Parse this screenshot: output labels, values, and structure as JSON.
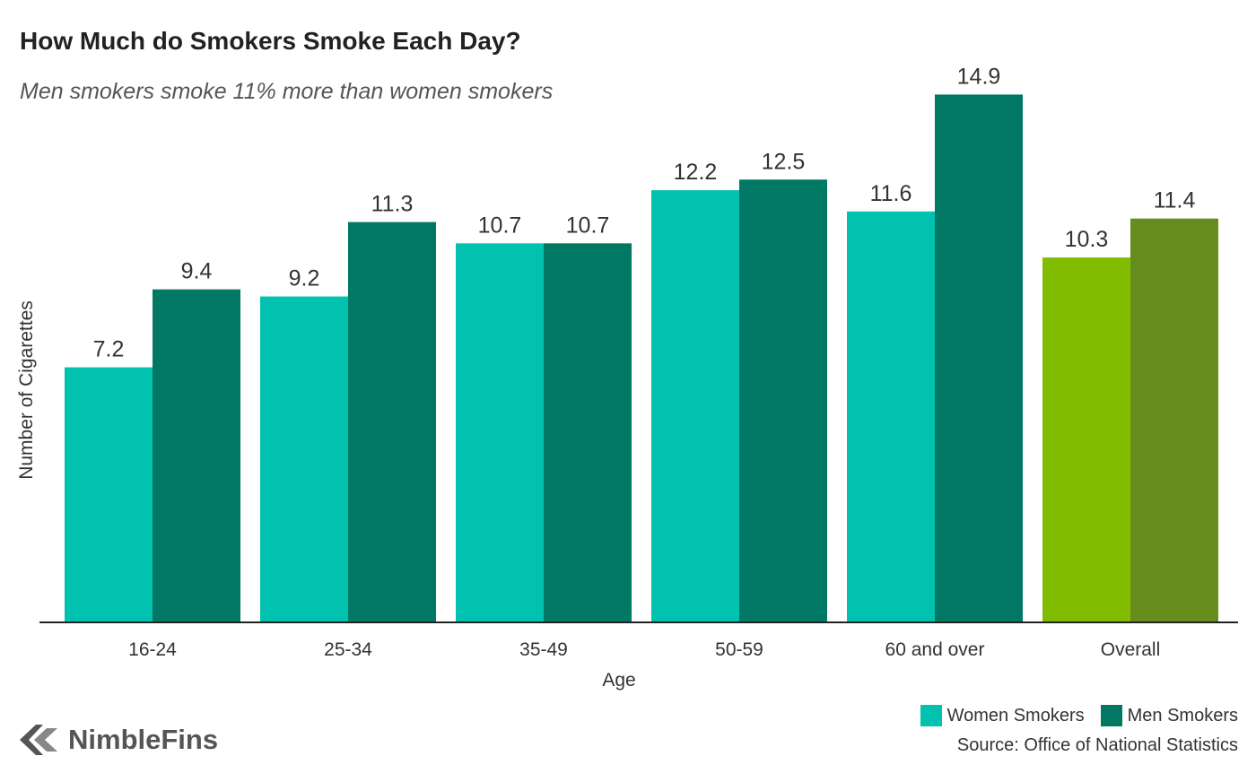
{
  "header": {
    "title": "How Much do Smokers Smoke Each Day?",
    "subtitle": "Men smokers smoke 11% more than women smokers"
  },
  "chart_data": {
    "type": "bar",
    "xlabel": "Age",
    "ylabel": "Number of Cigarettes",
    "ylim": [
      0,
      16
    ],
    "grid": false,
    "legend_position": "bottom-right",
    "categories": [
      "16-24",
      "25-34",
      "35-49",
      "50-59",
      "60 and over",
      "Overall"
    ],
    "series": [
      {
        "name": "Women Smokers",
        "values": [
          7.2,
          9.2,
          10.7,
          12.2,
          11.6,
          10.3
        ],
        "color": "#00C2AE",
        "highlight_color": "#82BC00"
      },
      {
        "name": "Men Smokers",
        "values": [
          9.4,
          11.3,
          10.7,
          12.5,
          14.9,
          11.4
        ],
        "color": "#007864",
        "highlight_color": "#678C1E"
      }
    ],
    "highlight_category": "Overall",
    "value_labels": [
      [
        "7.2",
        "9.2",
        "10.7",
        "12.2",
        "11.6",
        "10.3"
      ],
      [
        "9.4",
        "11.3",
        "10.7",
        "12.5",
        "14.9",
        "11.4"
      ]
    ]
  },
  "legend": {
    "items": [
      {
        "label": "Women Smokers",
        "color": "#00C2AE"
      },
      {
        "label": "Men Smokers",
        "color": "#007864"
      }
    ]
  },
  "footer": {
    "source": "Source: Office of National Statistics",
    "brand": "NimbleFins"
  }
}
